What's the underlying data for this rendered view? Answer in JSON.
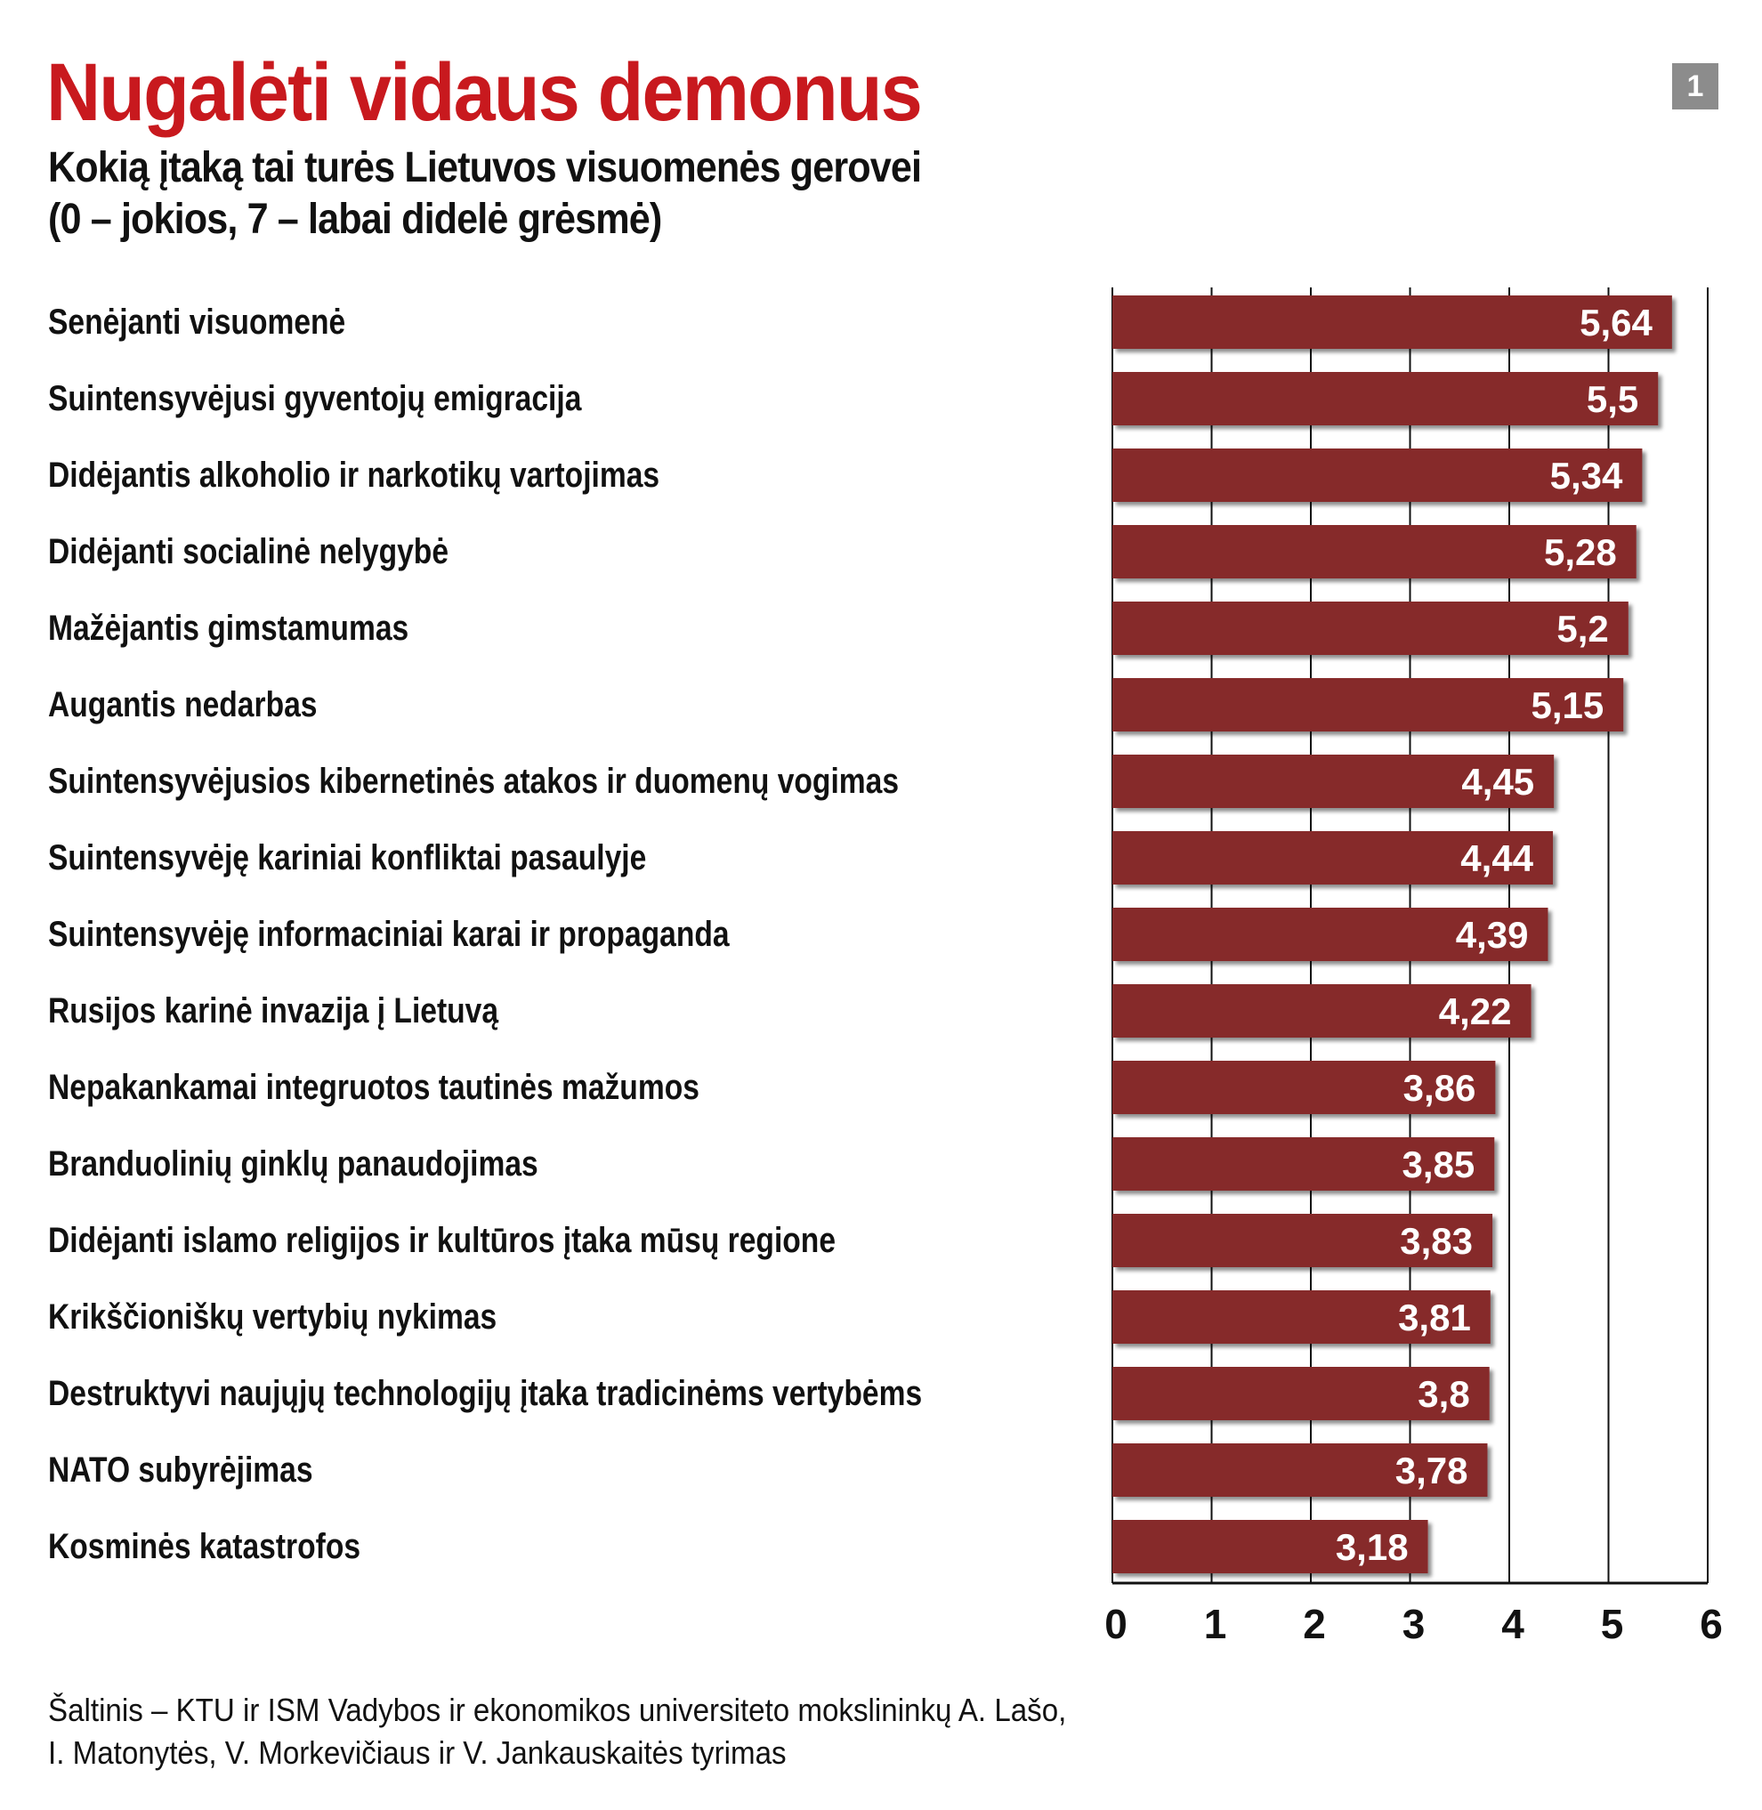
{
  "title": "Nugalėti vidaus demonus",
  "subtitle_line1": "Kokią įtaką tai turės Lietuvos visuomenės gerovei",
  "subtitle_line2": "(0 – jokios, 7 – labai didelė grėsmė)",
  "badge": "1",
  "footer_line1": "Šaltinis – KTU ir ISM Vadybos ir ekonomikos universiteto mokslininkų A. Lašo,",
  "footer_line2": "I. Matonytės, V. Morkevičiaus ir V. Jankauskaitės tyrimas",
  "colors": {
    "title": "#c8191e",
    "bar": "#862a2c",
    "bar_label": "#ffffff"
  },
  "chart_data": {
    "type": "bar",
    "orientation": "horizontal",
    "categories": [
      "Senėjanti visuomenė",
      "Suintensyvėjusi gyventojų emigracija",
      "Didėjantis alkoholio ir narkotikų vartojimas",
      "Didėjanti socialinė nelygybė",
      "Mažėjantis gimstamumas",
      "Augantis nedarbas",
      "Suintensyvėjusios kibernetinės atakos ir duomenų vogimas",
      "Suintensyvėję kariniai konfliktai pasaulyje",
      "Suintensyvėję informaciniai karai ir propaganda",
      "Rusijos karinė invazija į Lietuvą",
      "Nepakankamai integruotos tautinės mažumos",
      "Branduolinių ginklų panaudojimas",
      "Didėjanti islamo religijos ir kultūros įtaka mūsų regione",
      "Krikščioniškų vertybių nykimas",
      "Destruktyvi naujųjų technologijų įtaka tradicinėms vertybėms",
      "NATO subyrėjimas",
      "Kosminės katastrofos"
    ],
    "values": [
      5.64,
      5.5,
      5.34,
      5.28,
      5.2,
      5.15,
      4.45,
      4.44,
      4.39,
      4.22,
      3.86,
      3.85,
      3.83,
      3.81,
      3.8,
      3.78,
      3.18
    ],
    "value_labels": [
      "5,64",
      "5,5",
      "5,34",
      "5,28",
      "5,2",
      "5,15",
      "4,45",
      "4,44",
      "4,39",
      "4,22",
      "3,86",
      "3,85",
      "3,83",
      "3,81",
      "3,8",
      "3,78",
      "3,18"
    ],
    "xlim": [
      0,
      6
    ],
    "xticks": [
      "0",
      "1",
      "2",
      "3",
      "4",
      "5",
      "6"
    ],
    "grid": true
  }
}
